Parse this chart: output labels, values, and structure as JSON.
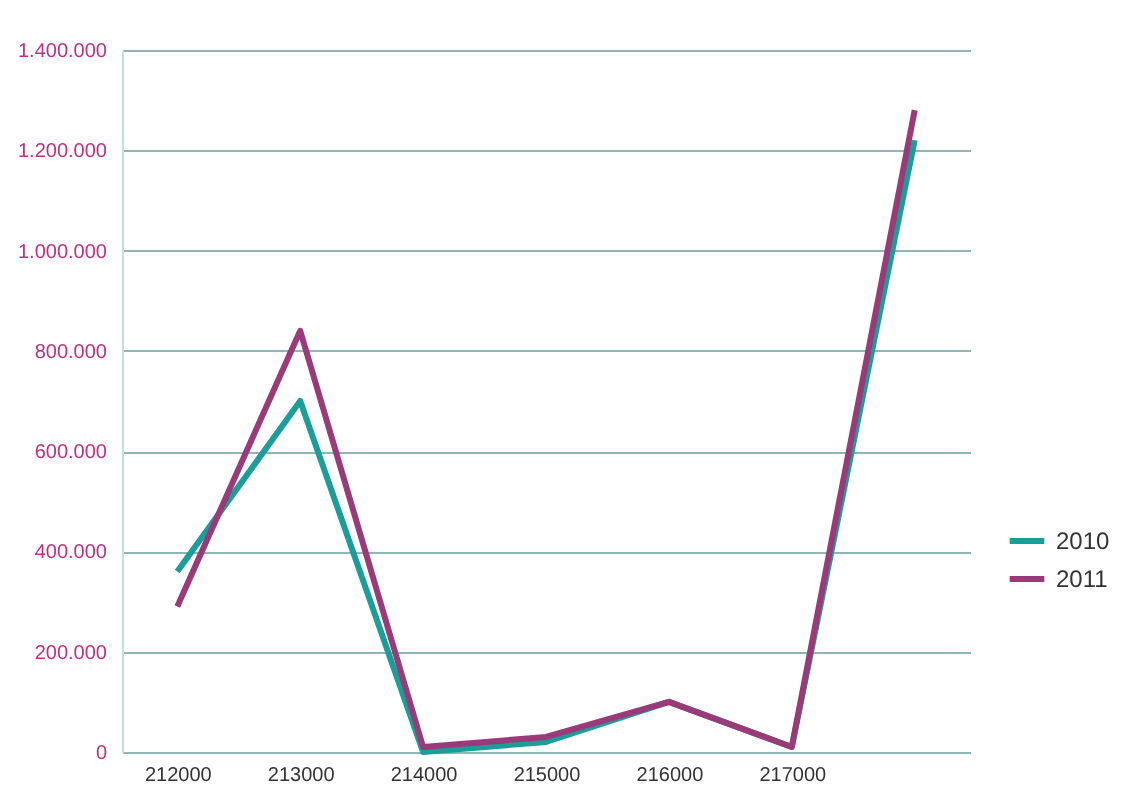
{
  "chart_data": {
    "type": "line",
    "categories": [
      "212000",
      "213000",
      "214000",
      "215000",
      "216000",
      "217000",
      null
    ],
    "series": [
      {
        "name": "2010",
        "color": "#1a9e9a",
        "values": [
          360000,
          700000,
          0,
          20000,
          100000,
          10000,
          1220000
        ]
      },
      {
        "name": "2011",
        "color": "#9b3a78",
        "values": [
          290000,
          840000,
          10000,
          30000,
          100000,
          10000,
          1280000
        ]
      }
    ],
    "ylim": [
      0,
      1400000
    ],
    "yticks": [
      {
        "value": 0,
        "label": "0"
      },
      {
        "value": 200000,
        "label": "200.000"
      },
      {
        "value": 400000,
        "label": "400.000"
      },
      {
        "value": 600000,
        "label": "600.000"
      },
      {
        "value": 800000,
        "label": "800.000"
      },
      {
        "value": 1000000,
        "label": "1.000.000"
      },
      {
        "value": 1200000,
        "label": "1.200.000"
      },
      {
        "value": 1400000,
        "label": "1.400.000"
      }
    ],
    "grid": "y",
    "legend": "right",
    "marker": "none",
    "line_style": "solid"
  }
}
